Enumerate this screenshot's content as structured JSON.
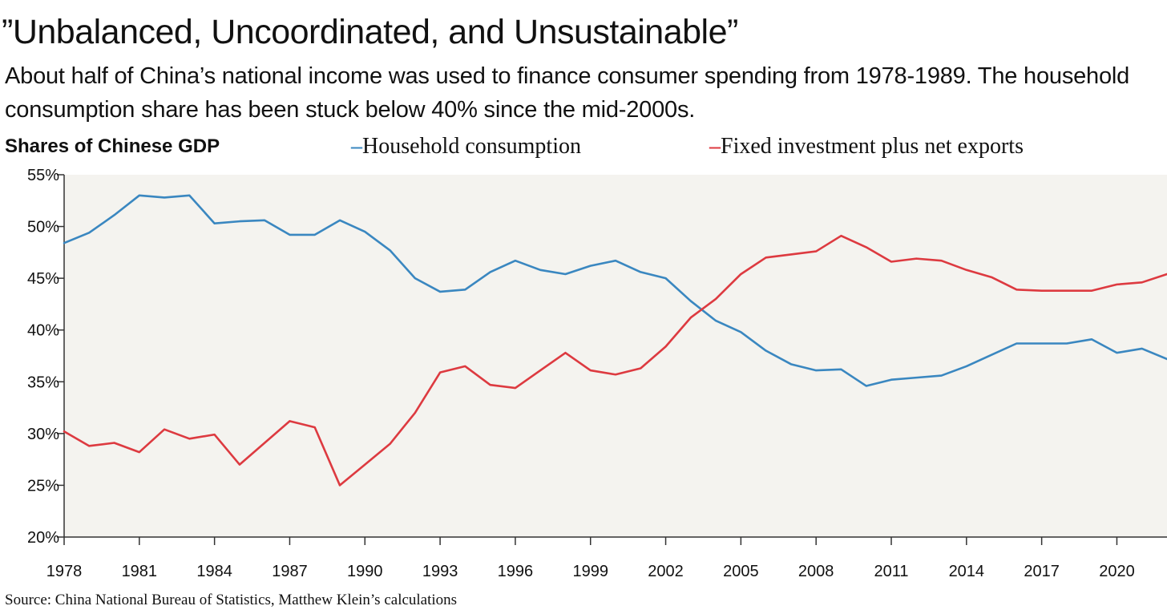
{
  "title": "”Unbalanced, Uncoordinated, and Unsustainable”",
  "subtitle": "About half of China’s national income was used to finance consumer spending from 1978-1989. The household consumption share has been stuck below 40% since the mid-2000s.",
  "source": "Source: China National Bureau of Statistics, Matthew Klein’s calculations",
  "colors": {
    "household": "#3a87c0",
    "investment": "#dd3a40",
    "plot_background": "#f4f3ef",
    "axis": "#333333"
  },
  "chart_data": {
    "type": "line",
    "title": "Shares of Chinese GDP",
    "x": [
      1978,
      1979,
      1980,
      1981,
      1982,
      1983,
      1984,
      1985,
      1986,
      1987,
      1988,
      1989,
      1990,
      1991,
      1992,
      1993,
      1994,
      1995,
      1996,
      1997,
      1998,
      1999,
      2000,
      2001,
      2002,
      2003,
      2004,
      2005,
      2006,
      2007,
      2008,
      2009,
      2010,
      2011,
      2012,
      2013,
      2014,
      2015,
      2016,
      2017,
      2018,
      2019,
      2020,
      2021,
      2022
    ],
    "x_tick_labels": [
      "1978",
      "1981",
      "1984",
      "1987",
      "1990",
      "1993",
      "1996",
      "1999",
      "2002",
      "2005",
      "2008",
      "2011",
      "2014",
      "2017",
      "2020"
    ],
    "xlim": [
      1978,
      2022
    ],
    "ylim": [
      20,
      55
    ],
    "y_ticks": [
      20,
      25,
      30,
      35,
      40,
      45,
      50,
      55
    ],
    "y_tick_labels": [
      "20%",
      "25%",
      "30%",
      "35%",
      "40%",
      "45%",
      "50%",
      "55%"
    ],
    "grid": false,
    "legend_position": "top",
    "series": [
      {
        "name": "Household consumption",
        "legend_marker": "–",
        "color": "#3a87c0",
        "values": [
          48.4,
          49.4,
          51.1,
          53.0,
          52.8,
          53.0,
          50.3,
          50.5,
          50.6,
          49.2,
          49.2,
          50.6,
          49.5,
          47.7,
          45.0,
          43.7,
          43.9,
          45.6,
          46.7,
          45.8,
          45.4,
          46.2,
          46.7,
          45.6,
          45.0,
          42.8,
          40.9,
          39.8,
          38.0,
          36.7,
          36.1,
          36.2,
          34.6,
          35.2,
          35.4,
          35.6,
          36.5,
          37.6,
          38.7,
          38.7,
          38.7,
          39.1,
          37.8,
          38.2,
          37.2
        ]
      },
      {
        "name": "Fixed investment plus net exports",
        "legend_marker": "–",
        "color": "#dd3a40",
        "values": [
          30.2,
          28.8,
          29.1,
          28.2,
          30.4,
          29.5,
          29.9,
          27.0,
          29.1,
          31.2,
          30.6,
          25.0,
          27.0,
          29.0,
          32.0,
          35.9,
          36.5,
          34.7,
          34.4,
          36.1,
          37.8,
          36.1,
          35.7,
          36.3,
          38.4,
          41.2,
          43.0,
          45.4,
          47.0,
          47.3,
          47.6,
          49.1,
          48.0,
          46.6,
          46.9,
          46.7,
          45.8,
          45.1,
          43.9,
          43.8,
          43.8,
          43.8,
          44.4,
          44.6,
          45.4
        ]
      }
    ]
  }
}
